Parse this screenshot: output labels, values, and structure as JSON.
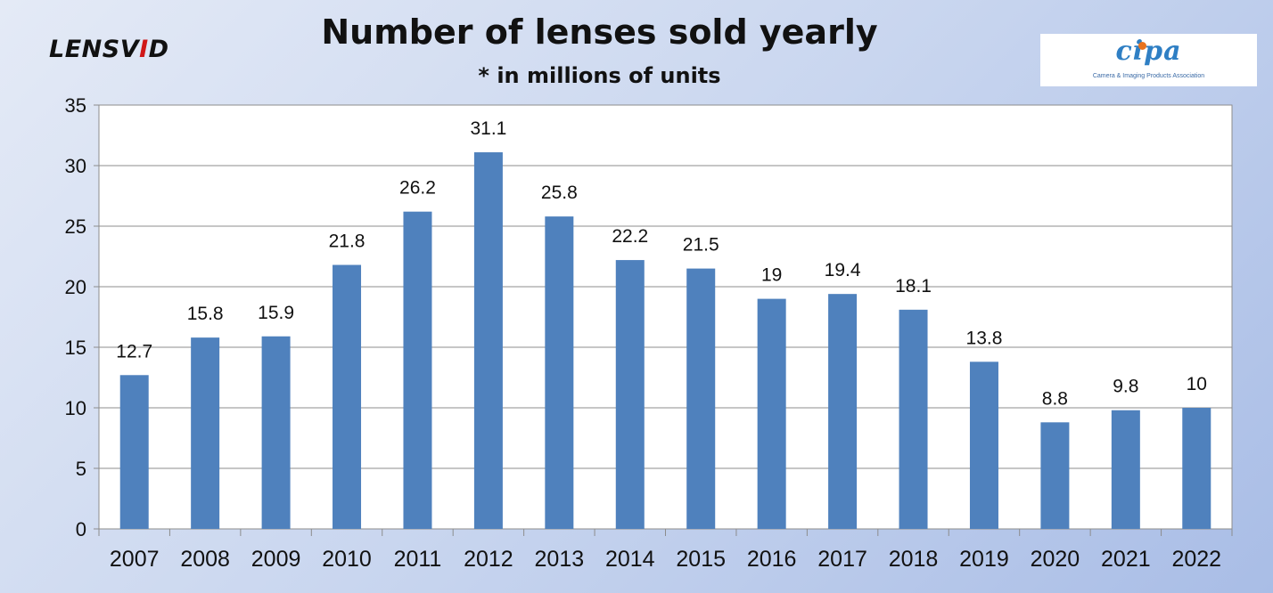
{
  "brand": {
    "left": "LENSV",
    "accent": "I",
    "right": "D"
  },
  "cipa_logo": {
    "mark": "cipa",
    "tagline": "Camera & Imaging Products Association",
    "accent_color": "#e8731f",
    "mark_color": "#2f7fc4"
  },
  "chart_data": {
    "type": "bar",
    "title": "Number of lenses sold yearly",
    "subtitle": "* in millions of units",
    "categories": [
      "2007",
      "2008",
      "2009",
      "2010",
      "2011",
      "2012",
      "2013",
      "2014",
      "2015",
      "2016",
      "2017",
      "2018",
      "2019",
      "2020",
      "2021",
      "2022"
    ],
    "values": [
      12.7,
      15.8,
      15.9,
      21.8,
      26.2,
      31.1,
      25.8,
      22.2,
      21.5,
      19,
      19.4,
      18.1,
      13.8,
      8.8,
      9.8,
      10
    ],
    "ylim": [
      0,
      35
    ],
    "yticks": [
      0,
      5,
      10,
      15,
      20,
      25,
      30,
      35
    ],
    "grid": true,
    "data_labels": true,
    "legend": "none",
    "bar_color": "#4f81bd"
  }
}
